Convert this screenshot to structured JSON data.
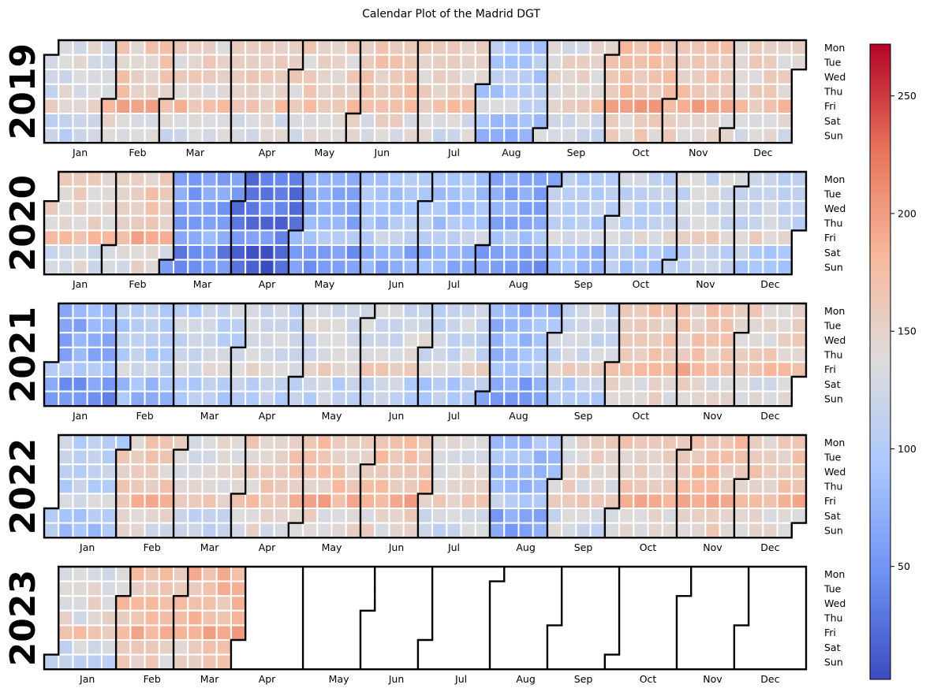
{
  "chart_data": {
    "type": "heatmap",
    "title": "Calendar Plot of the Madrid DGT",
    "subtype": "calendar",
    "years": [
      2019,
      2020,
      2021,
      2022,
      2023
    ],
    "year_labels": [
      "2019",
      "2020",
      "2021",
      "2022",
      "2023"
    ],
    "weekday_labels": [
      "Mon",
      "Tue",
      "Wed",
      "Thu",
      "Fri",
      "Sat",
      "Sun"
    ],
    "month_labels": [
      "Jan",
      "Feb",
      "Mar",
      "Apr",
      "May",
      "Jun",
      "Jul",
      "Aug",
      "Sep",
      "Oct",
      "Nov",
      "Dec"
    ],
    "colormap": "coolwarm",
    "colormap_stops": [
      "#3b4cc0",
      "#6f92f3",
      "#aac7fd",
      "#dddcdc",
      "#f7b89c",
      "#e7745b",
      "#b40426"
    ],
    "vmin": 2,
    "vmax": 272,
    "colorbar_ticks": [
      50,
      100,
      150,
      200,
      250
    ],
    "data_end": "2023-03-31",
    "grid_line_color": "#ffffff",
    "month_border_color": "#000000",
    "monthly_level_estimate": {
      "2019": [
        130,
        160,
        150,
        150,
        150,
        160,
        150,
        100,
        140,
        170,
        165,
        150
      ],
      "2020": [
        150,
        160,
        60,
        30,
        70,
        90,
        95,
        70,
        100,
        115,
        125,
        120
      ],
      "2021": [
        70,
        100,
        115,
        120,
        130,
        130,
        120,
        80,
        125,
        160,
        160,
        150
      ],
      "2022": [
        110,
        155,
        140,
        155,
        165,
        165,
        140,
        85,
        145,
        160,
        170,
        160
      ],
      "2023": [
        140,
        170,
        175,
        null,
        null,
        null,
        null,
        null,
        null,
        null,
        null,
        null
      ]
    },
    "fri_boost": 22,
    "weekend_drop": 18
  }
}
